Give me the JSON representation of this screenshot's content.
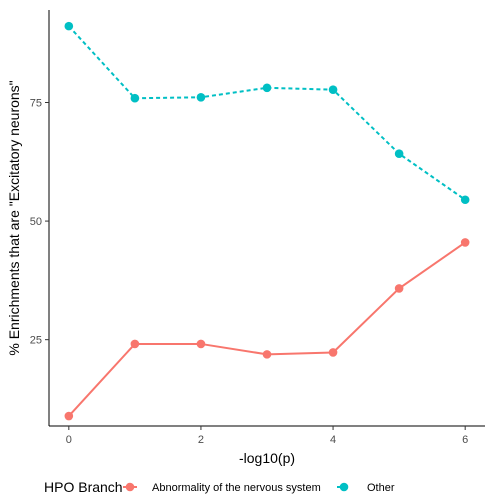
{
  "chart_data": {
    "type": "line",
    "xlabel": "-log10(p)",
    "ylabel": "% Enrichments that are \"Excitatory neurons\"",
    "xlim": [
      -0.3,
      6.3
    ],
    "ylim": [
      6.8,
      94.5
    ],
    "x_ticks": [
      0,
      2,
      4,
      6
    ],
    "y_ticks": [
      25,
      50,
      75
    ],
    "grid": false,
    "legend": {
      "title": "HPO Branch",
      "position": "bottom"
    },
    "series": [
      {
        "name": "Abnormality of the nervous system",
        "color": "#F8766D",
        "line_style": "solid",
        "x": [
          0,
          1,
          2,
          3,
          4,
          5,
          6
        ],
        "values": [
          8.9,
          24.1,
          24.1,
          21.9,
          22.3,
          35.8,
          45.5
        ]
      },
      {
        "name": "Other",
        "color": "#00BFC4",
        "line_style": "dashed",
        "x": [
          0,
          1,
          2,
          3,
          4,
          5,
          6
        ],
        "values": [
          91.1,
          75.9,
          76.1,
          78.1,
          77.7,
          64.2,
          54.5
        ]
      }
    ]
  }
}
